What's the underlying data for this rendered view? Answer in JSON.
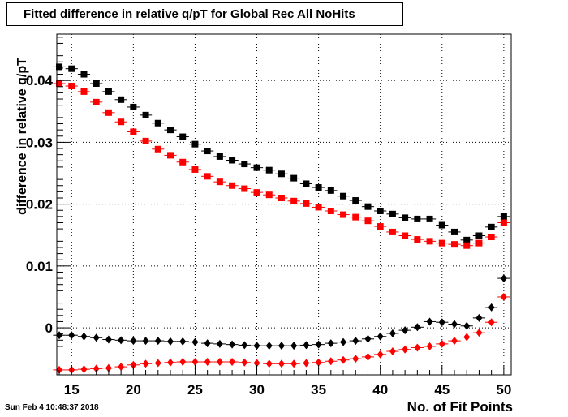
{
  "chart_data": {
    "type": "scatter",
    "title": "Fitted difference in relative q/pT for Global Rec All NoHits",
    "xlabel": "No. of Fit Points",
    "ylabel": "difference in relative q/pT",
    "xlim": [
      13.8,
      50.6
    ],
    "ylim": [
      -0.0076,
      0.0475
    ],
    "x_ticks": [
      15,
      20,
      25,
      30,
      35,
      40,
      45,
      50
    ],
    "y_ticks": [
      0,
      0.01,
      0.02,
      0.03,
      0.04
    ],
    "y_tick_labels": [
      "0",
      "0.01",
      "0.02",
      "0.03",
      "0.04"
    ],
    "grid": true,
    "x": [
      14,
      15,
      16,
      17,
      18,
      19,
      20,
      21,
      22,
      23,
      24,
      25,
      26,
      27,
      28,
      29,
      30,
      31,
      32,
      33,
      34,
      35,
      36,
      37,
      38,
      39,
      40,
      41,
      42,
      43,
      44,
      45,
      46,
      47,
      48,
      49,
      50
    ],
    "series": [
      {
        "marker": "square",
        "color": "#000000",
        "values": [
          0.0422,
          0.0419,
          0.041,
          0.0395,
          0.0382,
          0.0369,
          0.0357,
          0.0344,
          0.0331,
          0.032,
          0.0309,
          0.0297,
          0.0286,
          0.0277,
          0.0271,
          0.0265,
          0.0259,
          0.0255,
          0.0249,
          0.0242,
          0.0233,
          0.0227,
          0.0222,
          0.0213,
          0.0206,
          0.0196,
          0.0189,
          0.0184,
          0.0178,
          0.0176,
          0.0176,
          0.0166,
          0.0155,
          0.0142,
          0.0149,
          0.0163,
          0.018
        ]
      },
      {
        "marker": "square",
        "color": "#ff0000",
        "values": [
          0.0395,
          0.0391,
          0.0382,
          0.0365,
          0.0348,
          0.0333,
          0.0317,
          0.0302,
          0.0289,
          0.0279,
          0.0268,
          0.0256,
          0.0245,
          0.0236,
          0.023,
          0.0225,
          0.0219,
          0.0215,
          0.021,
          0.0205,
          0.0201,
          0.0195,
          0.0189,
          0.0183,
          0.0179,
          0.0173,
          0.0164,
          0.0155,
          0.0149,
          0.0143,
          0.014,
          0.0137,
          0.0135,
          0.0133,
          0.0137,
          0.0147,
          0.017
        ]
      },
      {
        "marker": "diamond",
        "color": "#000000",
        "values": [
          -0.0012,
          -0.0012,
          -0.0014,
          -0.0016,
          -0.0019,
          -0.002,
          -0.0021,
          -0.0021,
          -0.0021,
          -0.0022,
          -0.0022,
          -0.0023,
          -0.0025,
          -0.0026,
          -0.0027,
          -0.0028,
          -0.0029,
          -0.0029,
          -0.0029,
          -0.0029,
          -0.0028,
          -0.0027,
          -0.0025,
          -0.0023,
          -0.0021,
          -0.0018,
          -0.0014,
          -0.0009,
          -0.0004,
          0.0001,
          0.001,
          0.0009,
          0.0006,
          0.0003,
          0.0016,
          0.0033,
          0.008
        ]
      },
      {
        "marker": "diamond",
        "color": "#ff0000",
        "values": [
          -0.0068,
          -0.0068,
          -0.0067,
          -0.0066,
          -0.0065,
          -0.0063,
          -0.006,
          -0.0058,
          -0.0057,
          -0.0056,
          -0.0055,
          -0.0055,
          -0.0055,
          -0.0055,
          -0.0055,
          -0.0056,
          -0.0057,
          -0.0058,
          -0.0058,
          -0.0058,
          -0.0057,
          -0.0056,
          -0.0054,
          -0.0052,
          -0.005,
          -0.0047,
          -0.0043,
          -0.0038,
          -0.0035,
          -0.0032,
          -0.003,
          -0.0026,
          -0.0021,
          -0.0015,
          -0.0008,
          0.0009,
          0.005
        ]
      }
    ]
  },
  "footer": {
    "timestamp": "Sun Feb  4 10:48:37 2018"
  }
}
